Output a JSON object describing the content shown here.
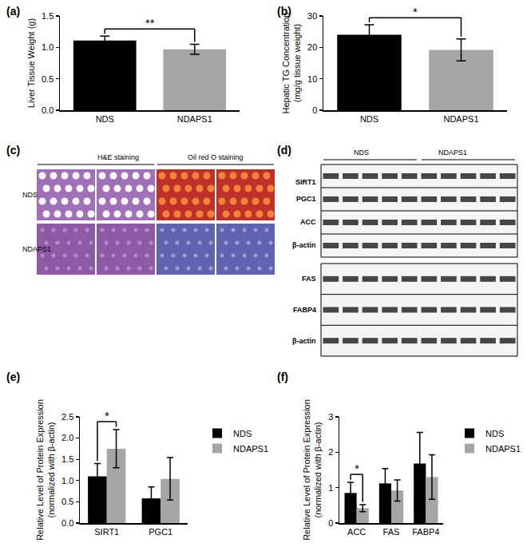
{
  "chart_data": [
    {
      "type": "bar",
      "title": "(a)",
      "ylabel": "Liver Tissue Weight (g)",
      "categories": [
        "NDS",
        "NDAPS1"
      ],
      "values": [
        1.11,
        0.97
      ],
      "errors": [
        0.07,
        0.08
      ],
      "colors": [
        "#000000",
        "#a6a6a6"
      ],
      "ylim": [
        0,
        1.5
      ],
      "yticks": [
        {
          "value": 0,
          "label": "0.0"
        },
        {
          "value": 0.5,
          "label": "0.5"
        },
        {
          "value": 1,
          "label": "1.0"
        },
        {
          "value": 1.5,
          "label": "1.5"
        }
      ],
      "annotations": [
        {
          "text": "**",
          "from": "NDS",
          "to": "NDAPS1"
        }
      ]
    },
    {
      "type": "bar",
      "title": "(b)",
      "ylabel": "Hepatic TG Concentration\n(mg/g tissue weight)",
      "categories": [
        "NDS",
        "NDAPS1"
      ],
      "values": [
        24,
        19.2
      ],
      "errors": [
        3.2,
        3.5
      ],
      "colors": [
        "#000000",
        "#a6a6a6"
      ],
      "ylim": [
        0,
        30
      ],
      "yticks": [
        0,
        10,
        20,
        30
      ],
      "annotations": [
        {
          "text": "*",
          "from": "NDS",
          "to": "NDAPS1"
        }
      ]
    },
    {
      "type": "bar",
      "title": "(e)",
      "ylabel": "Relative Level of Protein Expression\n(normalized with β-actin)",
      "categories": [
        "SIRT1",
        "PGC1"
      ],
      "series": [
        {
          "name": "NDS",
          "color": "#000000",
          "values": [
            1.1,
            0.58
          ],
          "errors": [
            0.3,
            0.27
          ]
        },
        {
          "name": "NDAPS1",
          "color": "#a6a6a6",
          "values": [
            1.75,
            1.04
          ],
          "errors": [
            0.45,
            0.5
          ]
        }
      ],
      "ylim": [
        0,
        2.5
      ],
      "yticks": [
        {
          "value": 0,
          "label": "0.0"
        },
        {
          "value": 0.5,
          "label": "0.5"
        },
        {
          "value": 1,
          "label": "1.0"
        },
        {
          "value": 1.5,
          "label": "1.5"
        },
        {
          "value": 2,
          "label": "2.0"
        },
        {
          "value": 2.5,
          "label": "2.5"
        }
      ],
      "legend": "right",
      "annotations": [
        {
          "text": "*",
          "category": "SIRT1",
          "from": "NDS",
          "to": "NDAPS1"
        }
      ]
    },
    {
      "type": "bar",
      "title": "(f)",
      "ylabel": "Relative Level of Protein Expression\n(normalized with β-actin)",
      "categories": [
        "ACC",
        "FAS",
        "FABP4"
      ],
      "series": [
        {
          "name": "NDS",
          "color": "#000000",
          "values": [
            0.85,
            1.12,
            1.68
          ],
          "errors": [
            0.3,
            0.42,
            0.88
          ]
        },
        {
          "name": "NDAPS1",
          "color": "#a6a6a6",
          "values": [
            0.42,
            0.92,
            1.3
          ],
          "errors": [
            0.1,
            0.3,
            0.63
          ]
        }
      ],
      "ylim": [
        0,
        3
      ],
      "yticks": [
        0,
        1,
        2,
        3
      ],
      "legend": "right",
      "annotations": [
        {
          "text": "*",
          "category": "ACC",
          "from": "NDS",
          "to": "NDAPS1"
        }
      ]
    }
  ],
  "histology": {
    "title": "(c)",
    "columns": [
      "H&E staining",
      "Oil red O staining"
    ],
    "rows": [
      "NDS",
      "NDAPS1"
    ]
  },
  "western_blot": {
    "title": "(d)",
    "groups": [
      "NDS",
      "NDAPS1"
    ],
    "lanes_per_group": 5,
    "blots": [
      [
        "SIRT1",
        "PGC1",
        "ACC",
        "β-actin"
      ],
      [
        "FAS",
        "FABP4",
        "β-actin"
      ]
    ]
  }
}
